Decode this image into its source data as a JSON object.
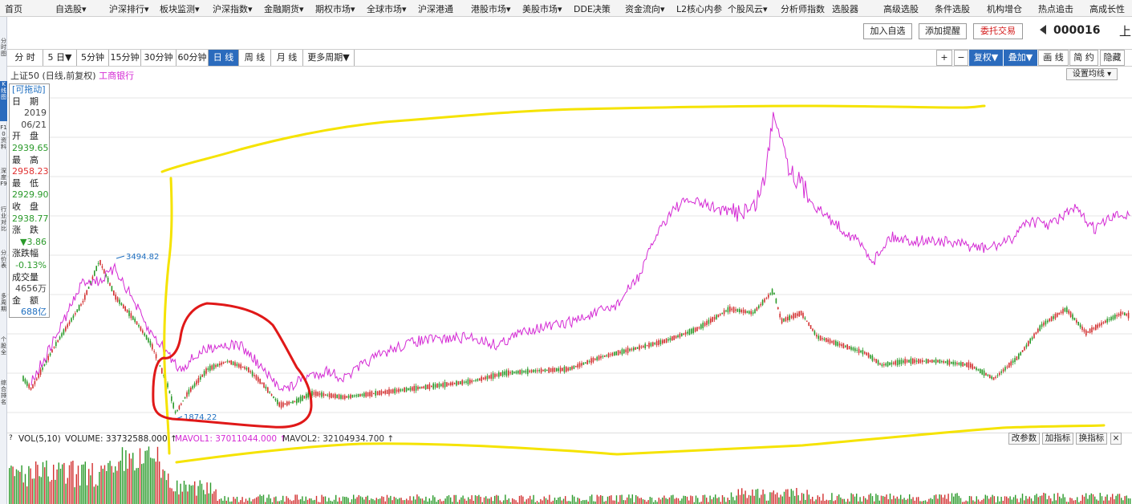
{
  "topnav": {
    "items": [
      "首页",
      "自选股▾",
      "沪深排行▾",
      "板块监测▾",
      "沪深指数▾",
      "金融期货▾",
      "期权市场▾",
      "全球市场▾",
      "沪深港通",
      "港股市场▾",
      "美股市场▾",
      "DDE决策",
      "资金流向▾",
      "L2核心内参",
      "个股风云▾",
      "分析师指数",
      "选股器",
      "高级选股",
      "条件选股",
      "机构增仓",
      "热点追击",
      "高成长性"
    ]
  },
  "side_tabs": [
    "分时图",
    "K线图",
    "F10资料",
    "深度F9",
    "行业对比",
    "分价表",
    "多周期",
    "个股全",
    "综合排名"
  ],
  "toolbar": {
    "add_watch": "加入自选",
    "add_alert": "添加提醒",
    "trade": "委托交易",
    "stock_code": "000016",
    "market": "上"
  },
  "period_bar": {
    "periods": [
      "分 时",
      "5 日▼",
      "5分钟",
      "15分钟",
      "30分钟",
      "60分钟",
      "日 线",
      "周 线",
      "月 线",
      "更多周期▼"
    ],
    "active": "日 线",
    "right_buttons": [
      "+",
      "−",
      "复权▼",
      "叠加▼",
      "画 线",
      "简 约",
      "隐藏"
    ]
  },
  "chart_caption": {
    "main": "上证50 (日线,前复权)",
    "overlay": "工商银行"
  },
  "ma_settings_button": "设置均线 ▾",
  "info_panel": {
    "title": "[可拖动]",
    "rows": [
      {
        "label": "日　期",
        "value": "2019"
      },
      {
        "label": "",
        "value": "06/21"
      },
      {
        "label": "开　盘",
        "value": "2939.65"
      },
      {
        "label": "最　高",
        "value": "2958.23"
      },
      {
        "label": "最　低",
        "value": "2929.90"
      },
      {
        "label": "收　盘",
        "value": "2938.77"
      },
      {
        "label": "涨　跌",
        "value": "▼3.86"
      },
      {
        "label": "涨跌幅",
        "value": "-0.13%"
      },
      {
        "label": "成交量",
        "value": "4656万"
      },
      {
        "label": "金　额",
        "value": "688亿"
      }
    ],
    "colors": {
      "open": "#2a9a2a",
      "high": "#e03030",
      "low": "#2a9a2a",
      "close": "#2a9a2a",
      "change": "#2a9a2a",
      "pct": "#2a9a2a",
      "amount": "#1f6fc0"
    }
  },
  "annotations": {
    "high_label": "3494.82",
    "low_label": "1874.22"
  },
  "volume": {
    "indicator": "VOL(5,10)",
    "volume_text": "VOLUME: 33732588.000 ↑",
    "mavol1_text": "MAVOL1: 37011044.000 ↑",
    "mavol2_text": "MAVOL2: 32104934.700 ↑",
    "buttons": [
      "改参数",
      "加指标",
      "换指标"
    ],
    "close": "×"
  },
  "colors": {
    "index_line": "#d42ad4",
    "candle_up": "#d23030",
    "candle_down": "#2a9a2a",
    "hand_drawn_yellow": "#f5e300",
    "hand_drawn_red": "#e01818",
    "active_blue": "#2b6bbd"
  }
}
